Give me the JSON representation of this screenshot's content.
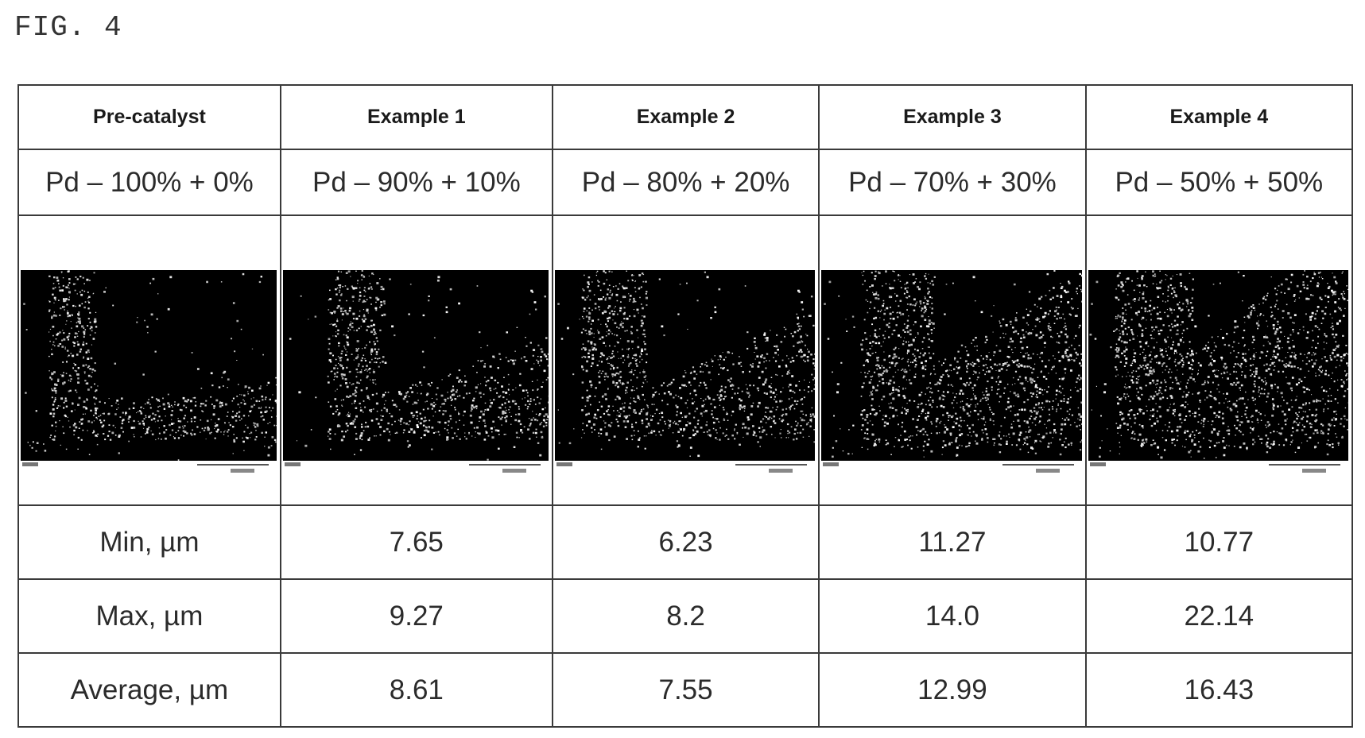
{
  "figure_label": "FIG. 4",
  "header": [
    "Pre-catalyst",
    "Example 1",
    "Example 2",
    "Example 3",
    "Example 4"
  ],
  "composition": [
    "Pd – 100% + 0%",
    "Pd – 90% + 10%",
    "Pd – 80% + 20%",
    "Pd – 70% + 30%",
    "Pd – 50% + 50%"
  ],
  "rows": [
    {
      "label": "Min, µm",
      "values": [
        "7.65",
        "6.23",
        "11.27",
        "10.77"
      ]
    },
    {
      "label": "Max, µm",
      "values": [
        "9.27",
        "8.2",
        "14.0",
        "22.14"
      ]
    },
    {
      "label": "Average, µm",
      "values": [
        "8.61",
        "7.55",
        "12.99",
        "16.43"
      ]
    }
  ],
  "image_descriptions": [
    "sem-micrograph-precatalyst",
    "sem-micrograph-example-1",
    "sem-micrograph-example-2",
    "sem-micrograph-example-3",
    "sem-micrograph-example-4"
  ]
}
